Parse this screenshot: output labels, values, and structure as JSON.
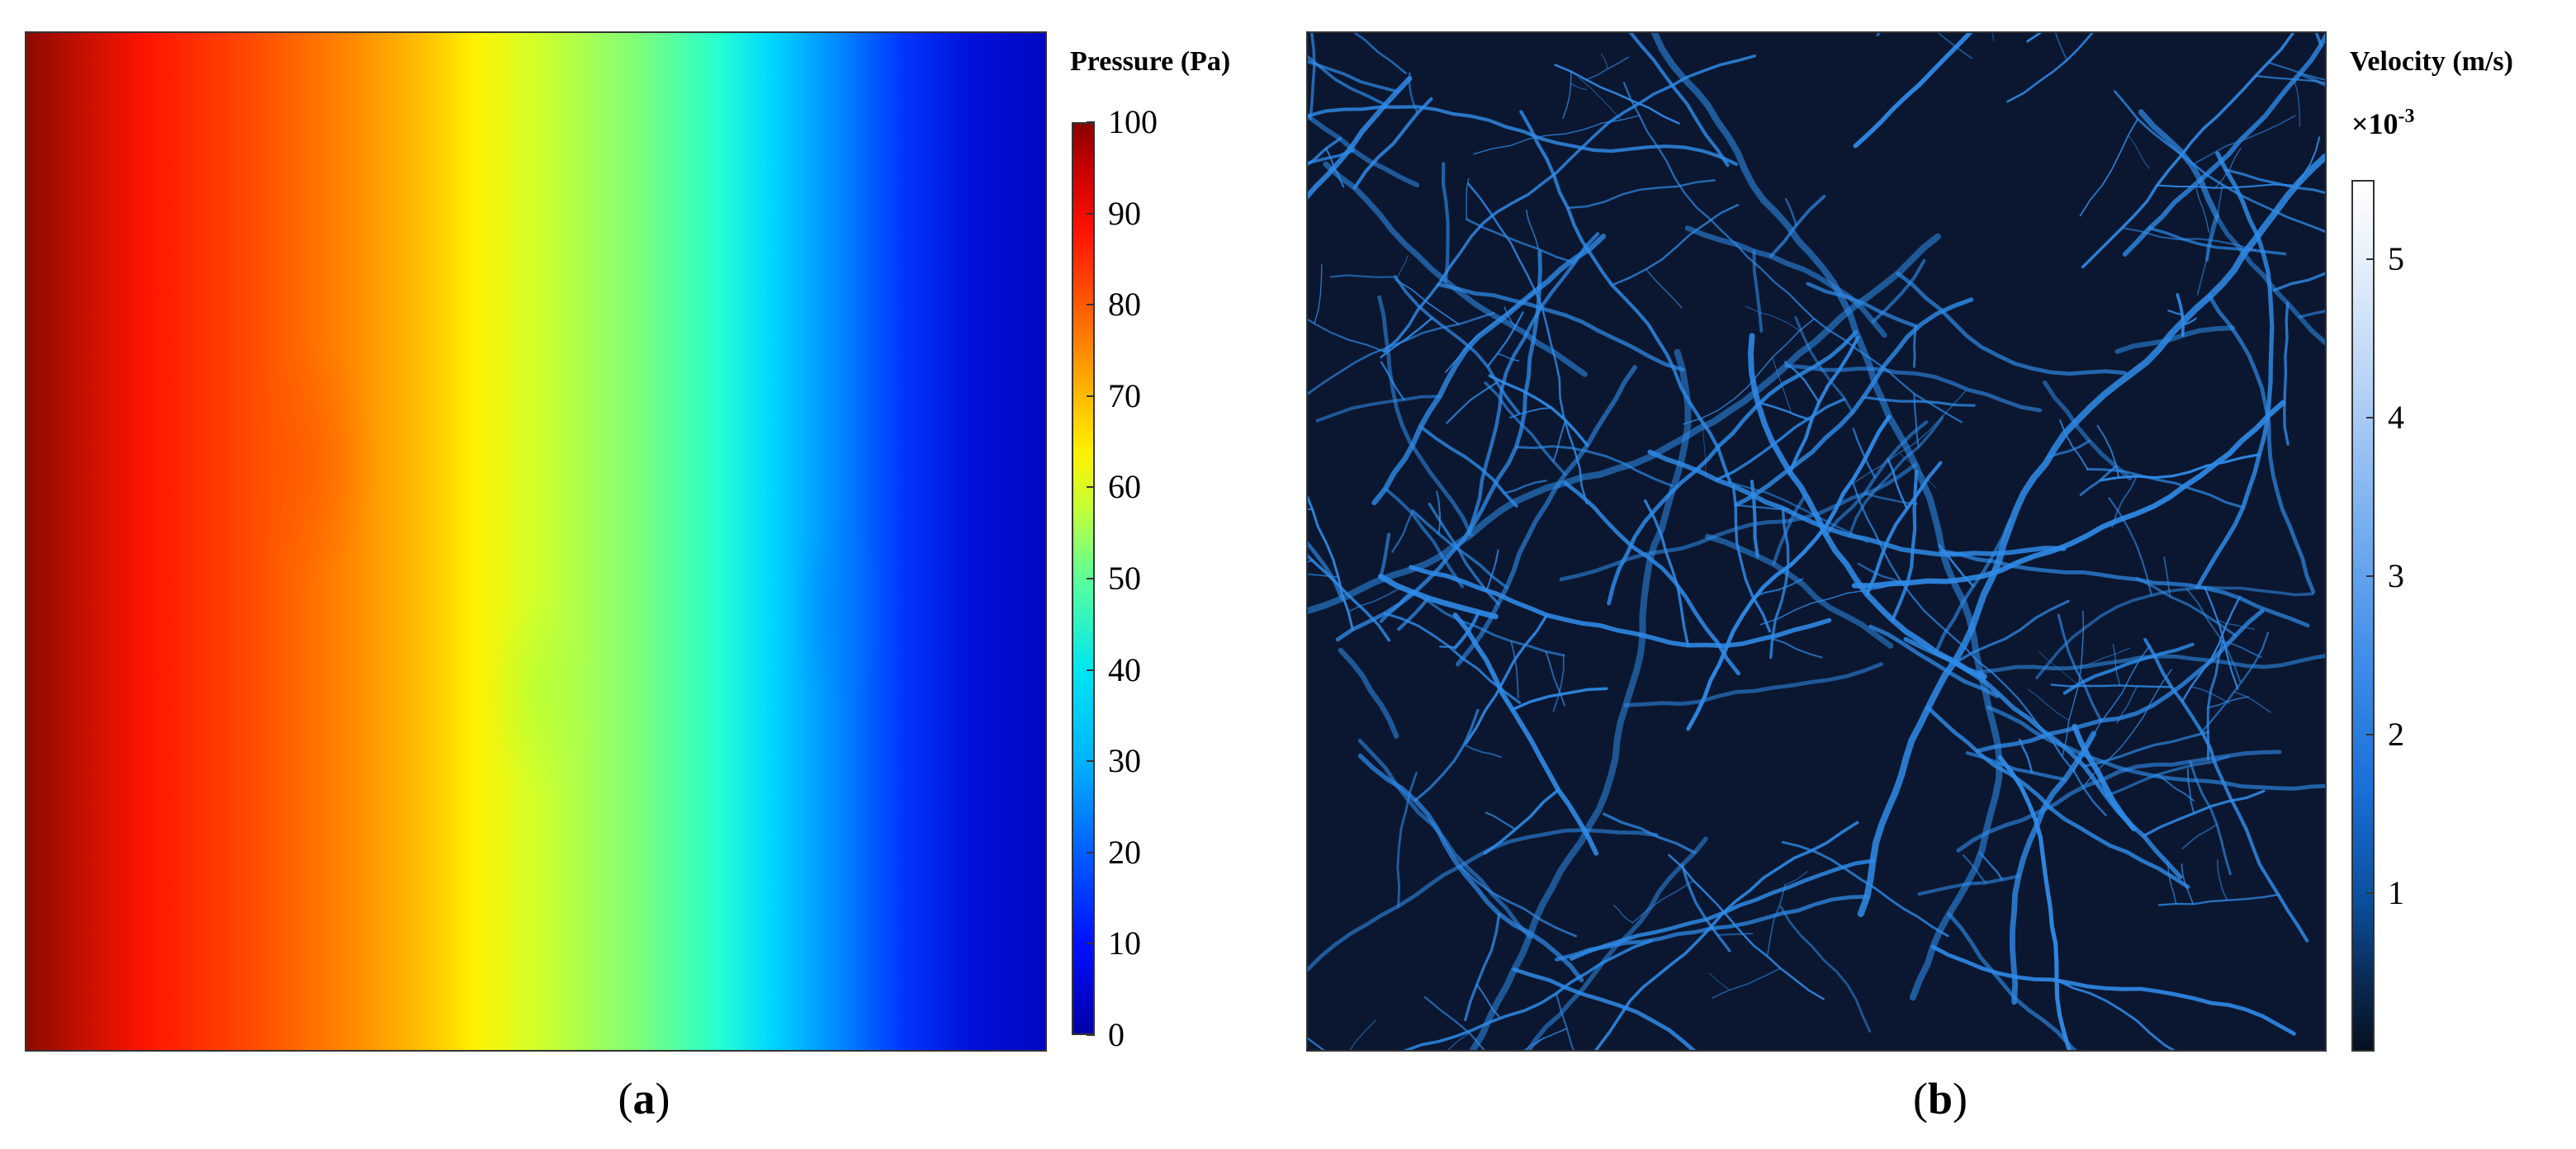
{
  "panel_a": {
    "colorbar_title": "Pressure (Pa)",
    "colorbar_ticks": [
      "100",
      "90",
      "80",
      "70",
      "60",
      "50",
      "40",
      "30",
      "20",
      "10",
      "0"
    ],
    "colorbar_range": [
      0,
      100
    ],
    "caption_open": "(",
    "caption_letter": "a",
    "caption_close": ")"
  },
  "panel_b": {
    "colorbar_title": "Velocity (m/s)",
    "colorbar_multiplier": "×10",
    "colorbar_multiplier_exp": "-3",
    "colorbar_ticks": [
      "5",
      "4",
      "3",
      "2",
      "1"
    ],
    "colorbar_range": [
      0,
      5.5
    ],
    "caption_open": "(",
    "caption_letter": "b",
    "caption_close": ")"
  },
  "colors": {
    "pressure_low": "#0000a8",
    "pressure_high": "#8a0000",
    "velocity_low": "#06101f",
    "velocity_high": "#ffffff",
    "fracture_line": "#2f8be8"
  }
}
